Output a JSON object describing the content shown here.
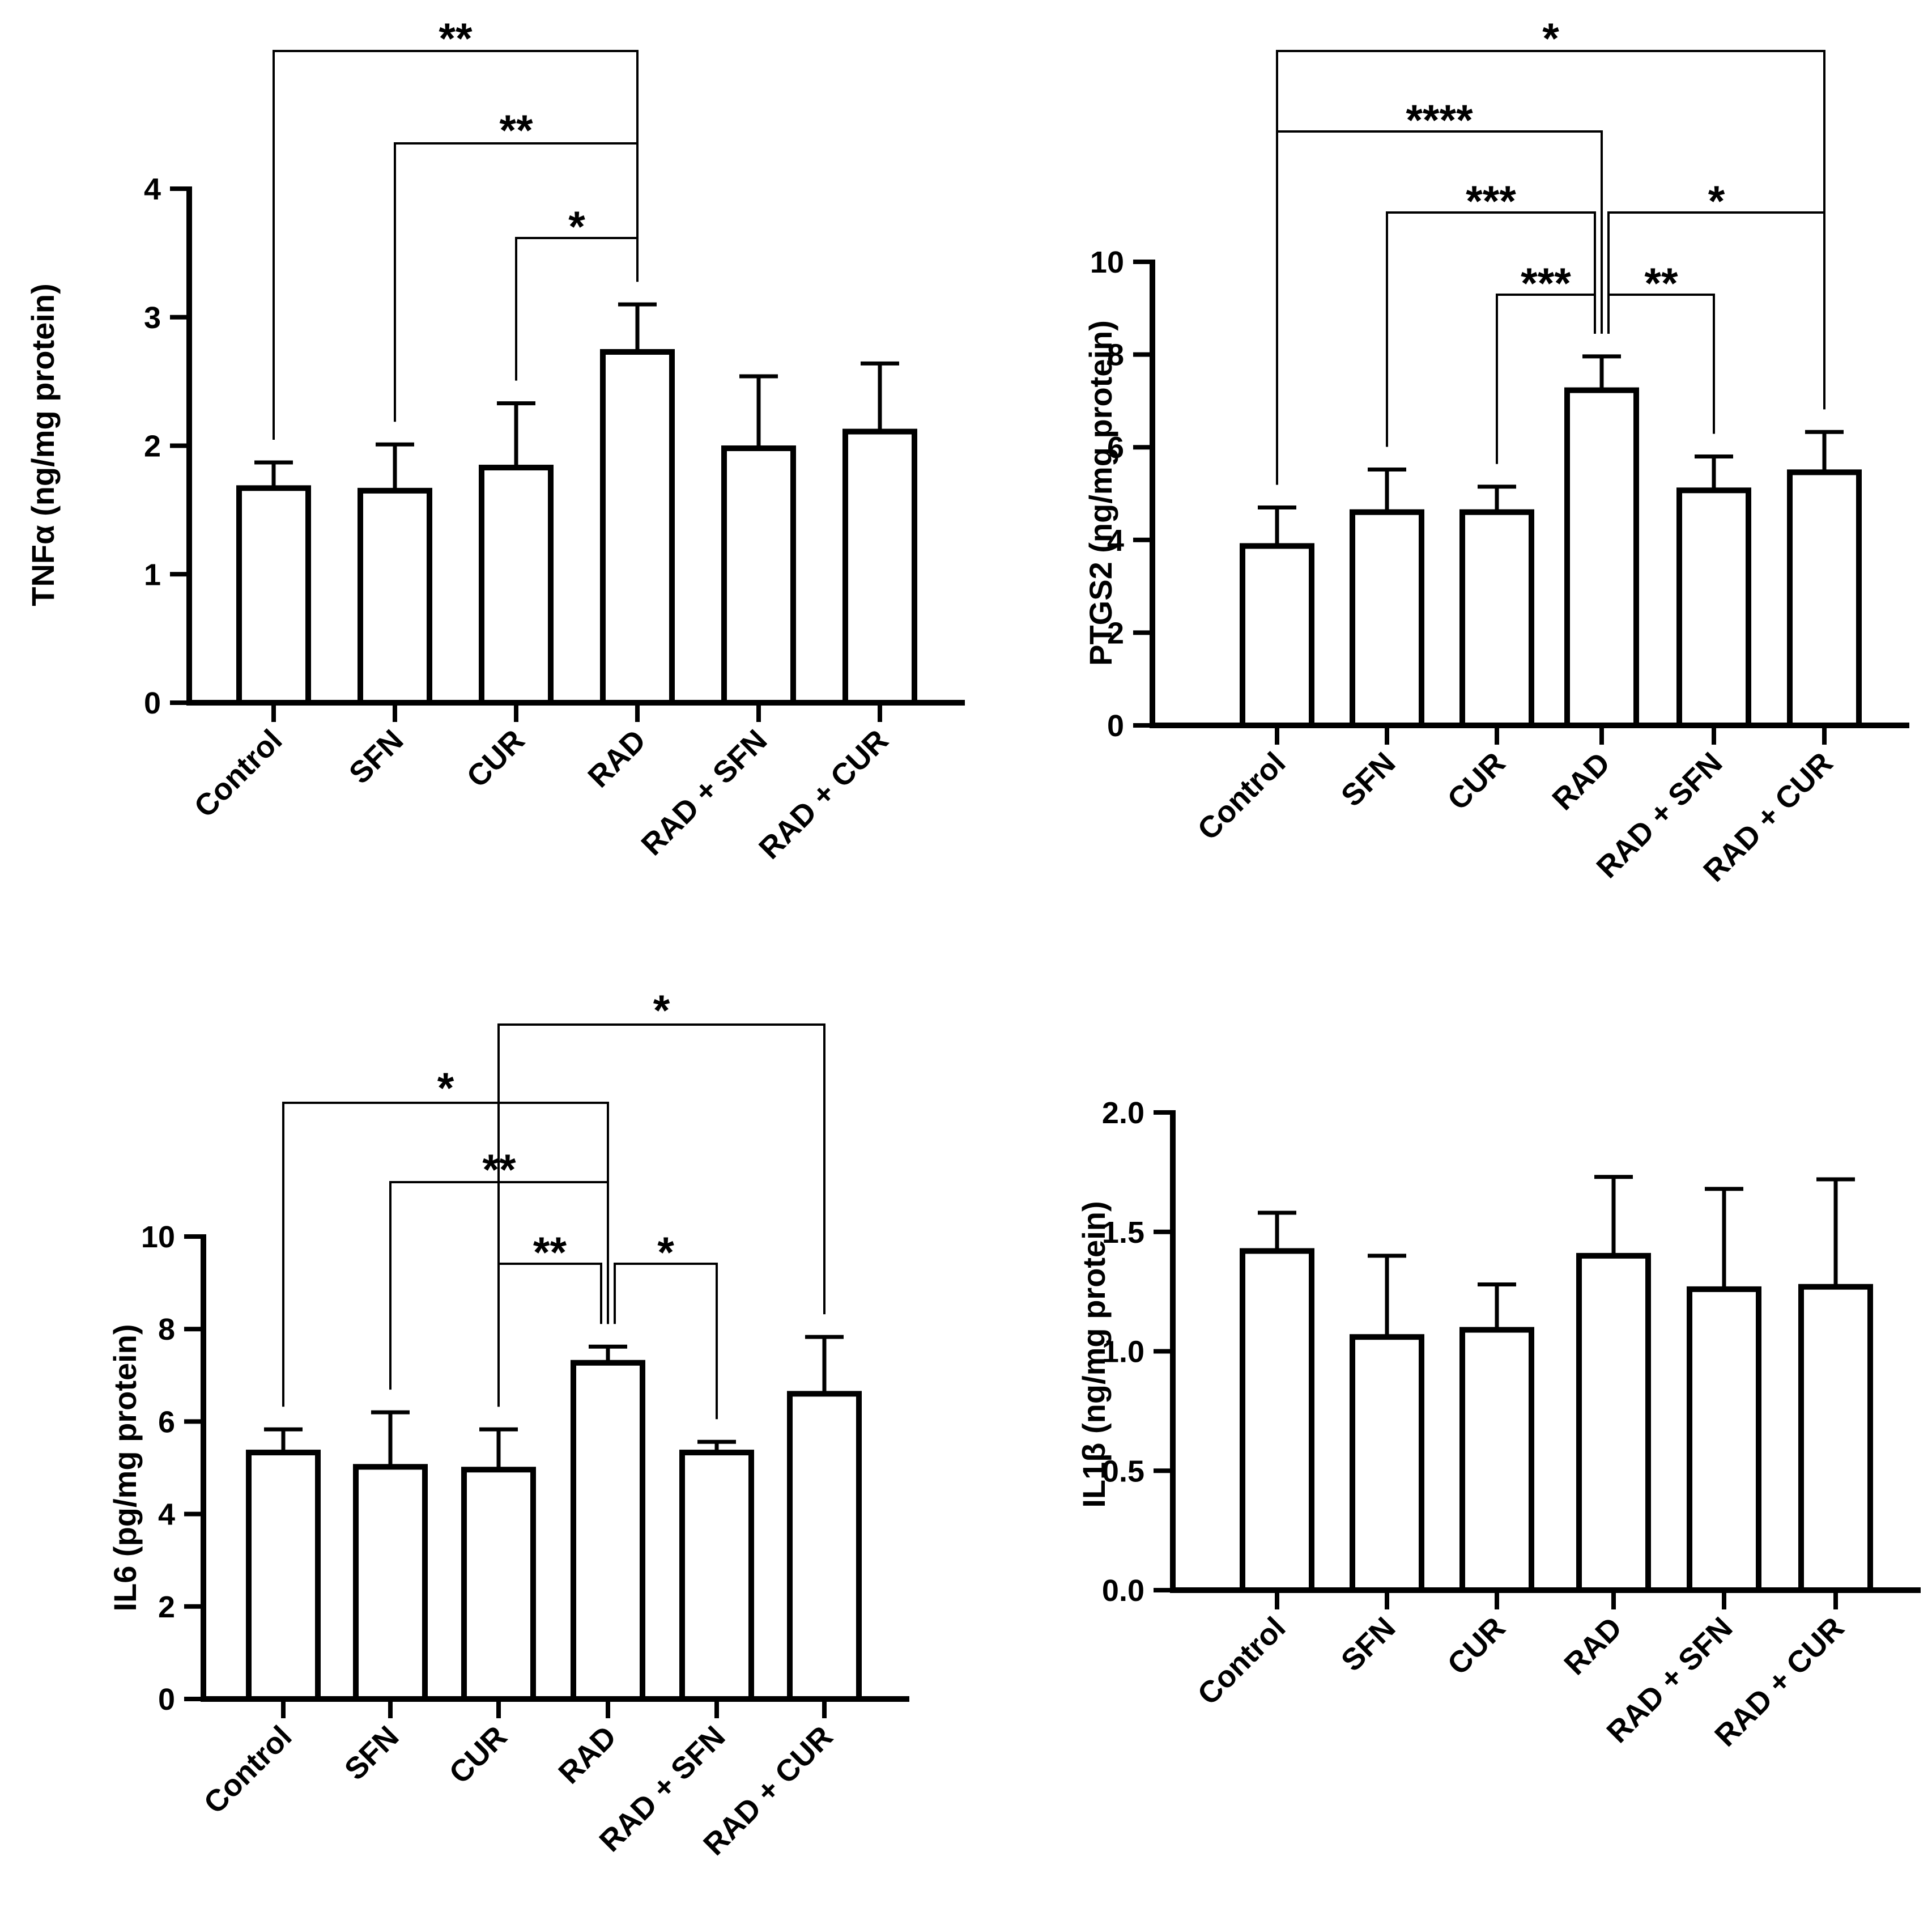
{
  "chart_data": [
    {
      "id": "tnfa",
      "type": "bar",
      "title": "",
      "ylabel": "TNFα (ng/mg protein)",
      "ylim": [
        0,
        4
      ],
      "yticks": [
        "0",
        "1",
        "2",
        "3",
        "4"
      ],
      "yticks_values": [
        0,
        1,
        2,
        3,
        4
      ],
      "categories": [
        "Control",
        "SFN",
        "CUR",
        "RAD",
        "RAD + SFN",
        "RAD + CUR"
      ],
      "values": [
        1.67,
        1.65,
        1.83,
        2.73,
        1.98,
        2.11
      ],
      "errors": [
        0.2,
        0.36,
        0.5,
        0.37,
        0.56,
        0.53
      ],
      "significance": [
        {
          "from": 0,
          "to": 3,
          "label": "**"
        },
        {
          "from": 1,
          "to": 3,
          "label": "**"
        },
        {
          "from": 2,
          "to": 3,
          "label": "*"
        }
      ]
    },
    {
      "id": "ptgs2",
      "type": "bar",
      "title": "",
      "ylabel": "PTGS2 (ng/mg protein)",
      "ylim": [
        0,
        10
      ],
      "yticks": [
        "0",
        "2",
        "4",
        "6",
        "8",
        "10"
      ],
      "yticks_values": [
        0,
        2,
        4,
        6,
        8,
        10
      ],
      "categories": [
        "Control",
        "SFN",
        "CUR",
        "RAD",
        "RAD + SFN",
        "RAD + CUR"
      ],
      "values": [
        3.87,
        4.6,
        4.6,
        7.23,
        5.07,
        5.46
      ],
      "errors": [
        0.83,
        0.92,
        0.55,
        0.73,
        0.73,
        0.87
      ],
      "significance": [
        {
          "from": 0,
          "to": 5,
          "label": "*"
        },
        {
          "from": 0,
          "to": 3,
          "label": "****"
        },
        {
          "from": 1,
          "to": 3,
          "label": "***"
        },
        {
          "from": 3,
          "to": 5,
          "label": "*"
        },
        {
          "from": 2,
          "to": 3,
          "label": "***"
        },
        {
          "from": 3,
          "to": 4,
          "label": "**"
        }
      ]
    },
    {
      "id": "il6",
      "type": "bar",
      "title": "",
      "ylabel": "IL6 (pg/mg protein)",
      "ylim": [
        0,
        10
      ],
      "yticks": [
        "0",
        "2",
        "4",
        "6",
        "8",
        "10"
      ],
      "yticks_values": [
        0,
        2,
        4,
        6,
        8,
        10
      ],
      "categories": [
        "Control",
        "SFN",
        "CUR",
        "RAD",
        "RAD + SFN",
        "RAD + CUR"
      ],
      "values": [
        5.33,
        5.02,
        4.96,
        7.27,
        5.33,
        6.6
      ],
      "errors": [
        0.5,
        1.18,
        0.87,
        0.35,
        0.23,
        1.23
      ],
      "significance": [
        {
          "from": 2,
          "to": 5,
          "label": "*"
        },
        {
          "from": 0,
          "to": 3,
          "label": "*"
        },
        {
          "from": 1,
          "to": 3,
          "label": "**"
        },
        {
          "from": 2,
          "to": 3,
          "label": "**"
        },
        {
          "from": 3,
          "to": 4,
          "label": "*"
        }
      ]
    },
    {
      "id": "il1b",
      "type": "bar",
      "title": "",
      "ylabel": "IL1β (ng/mg protein)",
      "ylim": [
        0,
        2
      ],
      "yticks": [
        "0.0",
        "0.5",
        "1.0",
        "1.5",
        "2.0"
      ],
      "yticks_values": [
        0,
        0.5,
        1,
        1.5,
        2
      ],
      "categories": [
        "Control",
        "SFN",
        "CUR",
        "RAD",
        "RAD + SFN",
        "RAD + CUR"
      ],
      "values": [
        1.42,
        1.06,
        1.09,
        1.4,
        1.26,
        1.27
      ],
      "errors": [
        0.16,
        0.34,
        0.19,
        0.33,
        0.42,
        0.45
      ],
      "significance": []
    }
  ]
}
